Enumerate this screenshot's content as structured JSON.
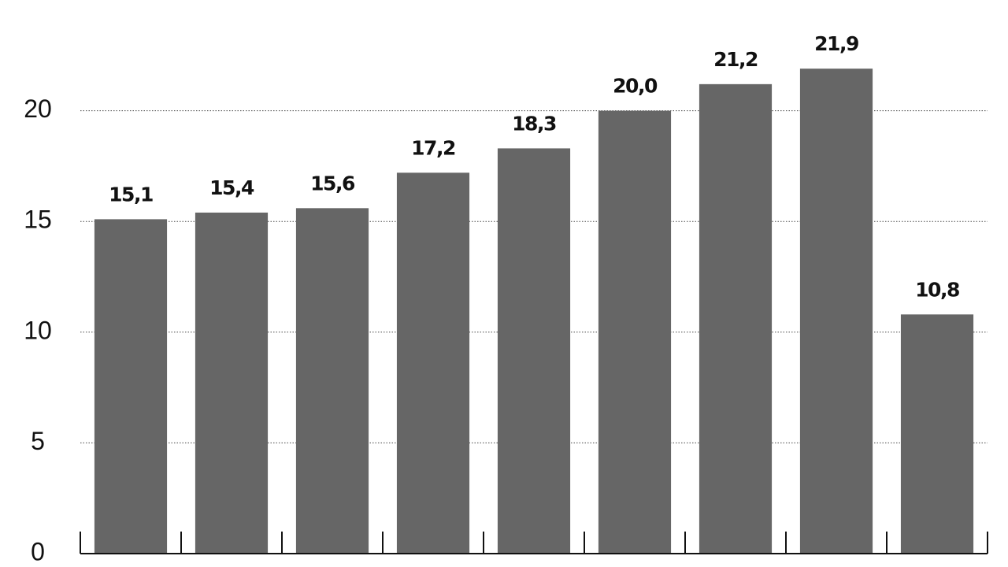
{
  "chart_data": {
    "type": "bar",
    "categories": [
      null,
      null,
      null,
      null,
      null,
      null,
      null,
      null,
      null
    ],
    "values": [
      15.1,
      15.4,
      15.6,
      17.2,
      18.3,
      20.0,
      21.2,
      21.9,
      10.8
    ],
    "value_labels": [
      "15,1",
      "15,4",
      "15,6",
      "17,2",
      "18,3",
      "20,0",
      "21,2",
      "21,9",
      "10,8"
    ],
    "color": "#666666",
    "ylim": [
      0,
      25
    ],
    "yticks": [
      0,
      5,
      10,
      15,
      20
    ],
    "grid": true
  }
}
